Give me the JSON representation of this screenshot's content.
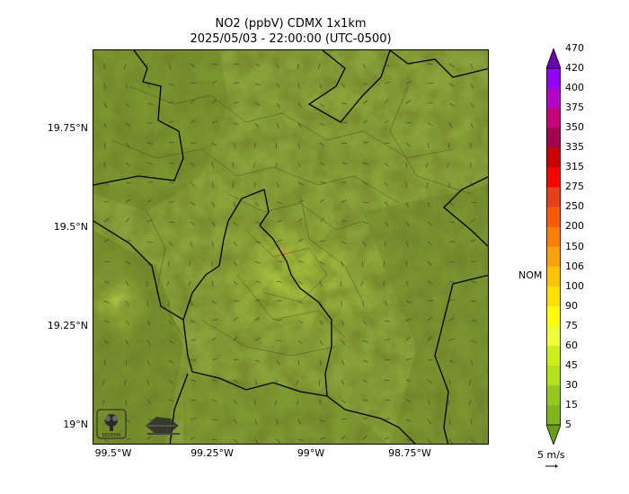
{
  "title": {
    "line1": "NO2 (ppbV) CDMX 1x1km",
    "line2": "2025/05/03 - 22:00:00 (UTC-0500)"
  },
  "map": {
    "y_ticks": [
      "19.75°N",
      "19.5°N",
      "19.25°N",
      "19°N"
    ],
    "x_ticks": [
      "99.5°W",
      "99.25°W",
      "99°W",
      "98.75°W"
    ],
    "base_color": "#8aa23a",
    "hotspot_color": "#f2b34a",
    "logos": [
      "SEDEMA"
    ]
  },
  "colorbar": {
    "levels": [
      "5",
      "15",
      "30",
      "45",
      "60",
      "75",
      "90",
      "100",
      "106",
      "150",
      "200",
      "250",
      "275",
      "315",
      "335",
      "350",
      "375",
      "400",
      "420",
      "470"
    ],
    "colors": [
      "#6b9a1d",
      "#7fb51f",
      "#96c91e",
      "#b3e019",
      "#cfef1a",
      "#eefe3a",
      "#ffff00",
      "#ffe100",
      "#ffc300",
      "#ffa200",
      "#ff7f00",
      "#ff5a00",
      "#e8401a",
      "#ff0000",
      "#cc0000",
      "#a0004e",
      "#c8007c",
      "#b000c8",
      "#9300ff",
      "#6a00b0"
    ],
    "nom_label": "NOM",
    "nom_value": "106",
    "wind_label": "5 m/s"
  }
}
